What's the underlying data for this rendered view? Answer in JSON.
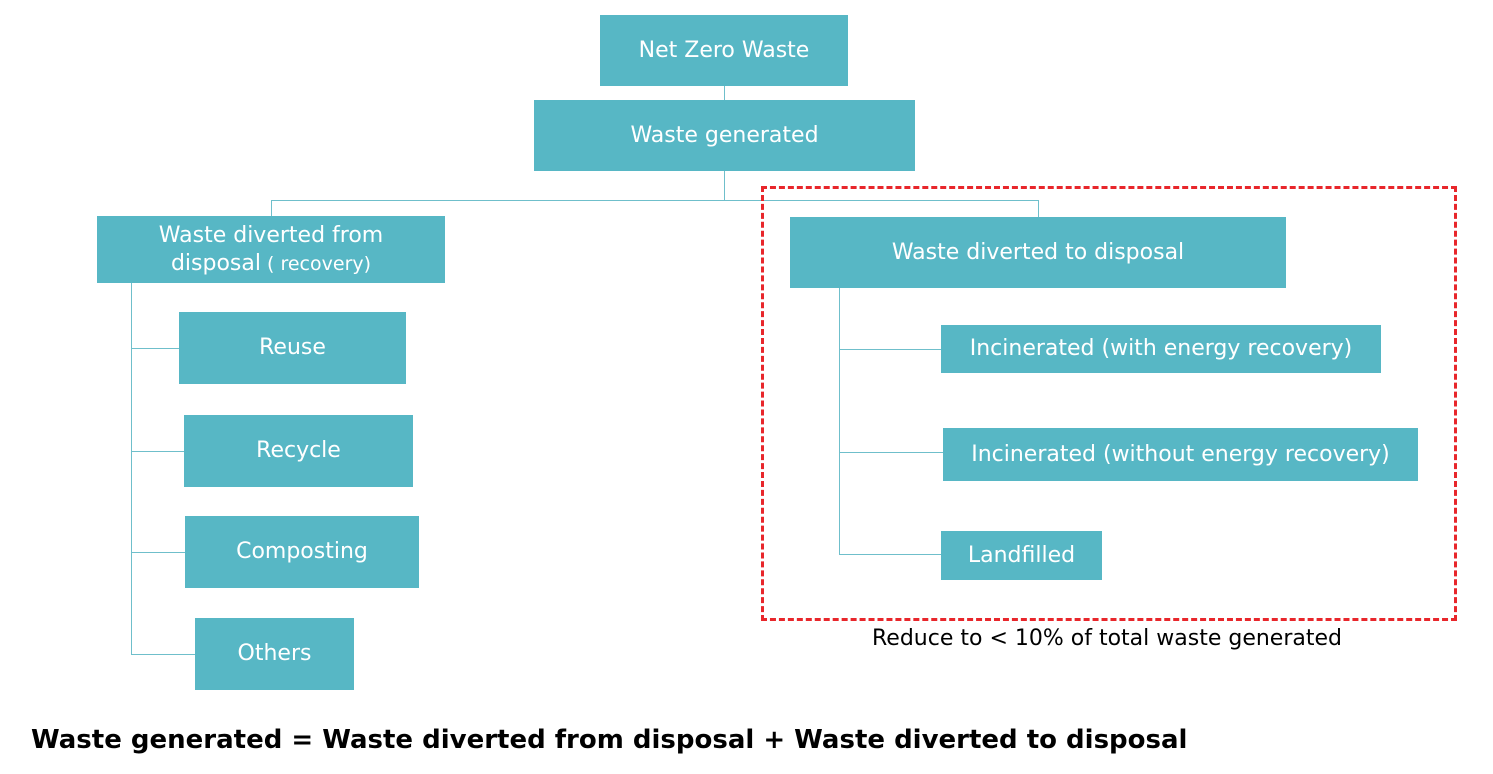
{
  "diagram": {
    "root": "Net Zero Waste",
    "generated": "Waste generated",
    "left_branch": {
      "title_line1": "Waste diverted from",
      "title_line2": "disposal",
      "title_suffix": " ( recovery)",
      "children": [
        "Reuse",
        "Recycle",
        "Composting",
        "Others"
      ]
    },
    "right_branch": {
      "title": "Waste diverted to disposal",
      "children": [
        "Incinerated (with energy recovery)",
        "Incinerated (without energy recovery)",
        "Landfilled"
      ]
    },
    "target_note": "Reduce to < 10% of total waste generated",
    "accent_color": "#57b7c5",
    "highlight_color": "#e8262b"
  },
  "formula": "Waste generated = Waste diverted from disposal + Waste diverted to disposal"
}
